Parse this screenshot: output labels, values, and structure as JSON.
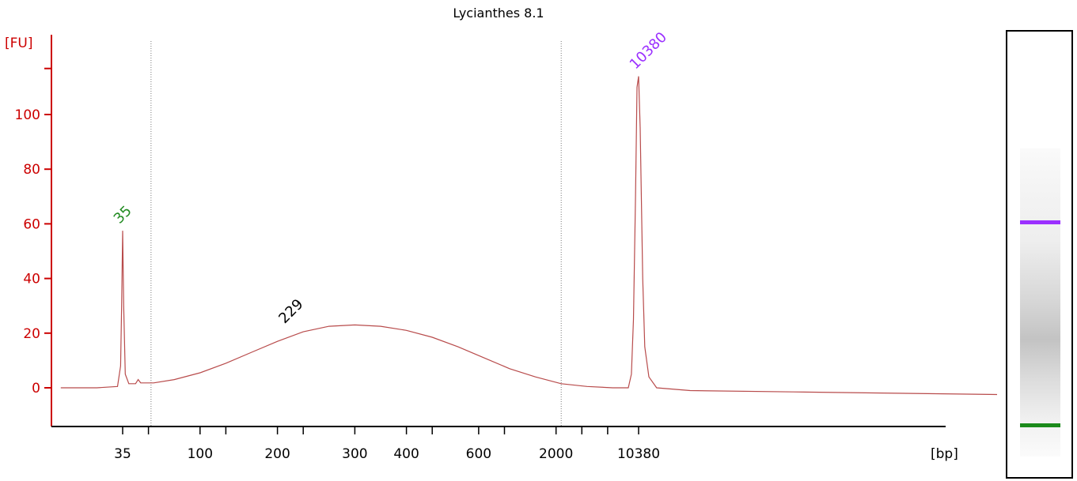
{
  "chart_data": {
    "type": "line",
    "title": "Lycianthes 8.1",
    "ylabel": "[FU]",
    "xlabel": "[bp]",
    "ylim": [
      -14,
      118
    ],
    "yticks": [
      0,
      20,
      40,
      60,
      80,
      100
    ],
    "xticks": [
      {
        "label": "35",
        "pos": 0.0
      },
      {
        "label": "",
        "pos": 0.5
      },
      {
        "label": "100",
        "pos": 1.5
      },
      {
        "label": "",
        "pos": 2.0
      },
      {
        "label": "200",
        "pos": 3.0
      },
      {
        "label": "",
        "pos": 3.5
      },
      {
        "label": "300",
        "pos": 4.5
      },
      {
        "label": "400",
        "pos": 5.5
      },
      {
        "label": "",
        "pos": 6.0
      },
      {
        "label": "600",
        "pos": 6.9
      },
      {
        "label": "",
        "pos": 7.4
      },
      {
        "label": "2000",
        "pos": 8.4
      },
      {
        "label": "",
        "pos": 8.9
      },
      {
        "label": "",
        "pos": 9.4
      },
      {
        "label": "10380",
        "pos": 10.0
      }
    ],
    "xlim": [
      -1.2,
      17.1
    ],
    "series": [
      {
        "color": "#b84b4b",
        "points": [
          [
            -1.2,
            0
          ],
          [
            -0.5,
            0
          ],
          [
            -0.1,
            0.5
          ],
          [
            -0.04,
            8
          ],
          [
            -0.02,
            30
          ],
          [
            0.0,
            57.5
          ],
          [
            0.02,
            30
          ],
          [
            0.05,
            5
          ],
          [
            0.12,
            1.5
          ],
          [
            0.25,
            1.5
          ],
          [
            0.3,
            3
          ],
          [
            0.35,
            1.8
          ],
          [
            0.6,
            1.8
          ],
          [
            1.0,
            3
          ],
          [
            1.5,
            5.5
          ],
          [
            2.0,
            9
          ],
          [
            2.5,
            13
          ],
          [
            3.0,
            17
          ],
          [
            3.5,
            20.5
          ],
          [
            4.0,
            22.5
          ],
          [
            4.5,
            23
          ],
          [
            5.0,
            22.5
          ],
          [
            5.5,
            21
          ],
          [
            6.0,
            18.5
          ],
          [
            6.5,
            15
          ],
          [
            7.0,
            11
          ],
          [
            7.5,
            7
          ],
          [
            8.0,
            4
          ],
          [
            8.5,
            1.5
          ],
          [
            9.0,
            0.5
          ],
          [
            9.5,
            0
          ],
          [
            9.8,
            0
          ],
          [
            9.86,
            5
          ],
          [
            9.9,
            25
          ],
          [
            9.94,
            70
          ],
          [
            9.97,
            110
          ],
          [
            10.0,
            114
          ],
          [
            10.03,
            95
          ],
          [
            10.08,
            40
          ],
          [
            10.12,
            15
          ],
          [
            10.2,
            4
          ],
          [
            10.35,
            0
          ],
          [
            11.0,
            -1
          ],
          [
            13.0,
            -1.5
          ],
          [
            15.0,
            -2
          ],
          [
            17.1,
            -2.5
          ]
        ]
      }
    ],
    "peaks": [
      {
        "label": "35",
        "x": 0.0,
        "y": 57.5,
        "color": "#228b22"
      },
      {
        "label": "229",
        "x": 3.2,
        "y": 21,
        "color": "#000000"
      },
      {
        "label": "10380",
        "x": 10.0,
        "y": 114,
        "color": "#9b30ff"
      }
    ],
    "vlines": [
      0.55,
      8.5
    ],
    "colors": {
      "axis": "#cc0000",
      "trace": "#b84b4b"
    },
    "grid": false
  },
  "gel": {
    "bands": [
      {
        "color": "#9b30ff"
      },
      {
        "color": "#1a8a1a"
      }
    ]
  }
}
